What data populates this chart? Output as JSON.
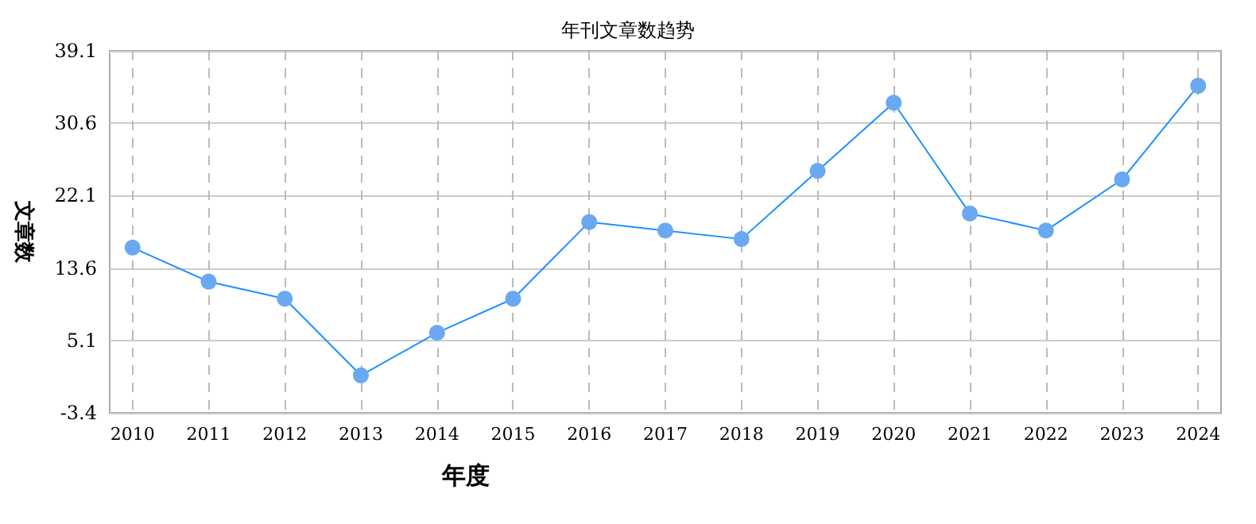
{
  "chart_data": {
    "type": "line",
    "title": "年刊文章数趋势",
    "xlabel": "年度",
    "ylabel": "文章数",
    "x": [
      2010,
      2011,
      2012,
      2013,
      2014,
      2015,
      2016,
      2017,
      2018,
      2019,
      2020,
      2021,
      2022,
      2023,
      2024
    ],
    "series": [
      {
        "color": "#1e90ff",
        "values": [
          16,
          12,
          10,
          1,
          6,
          10,
          19,
          18,
          17,
          25,
          33,
          20,
          18,
          24,
          35
        ]
      }
    ],
    "xlim": [
      2009.7,
      2024.3
    ],
    "xticks": [
      2010,
      2011,
      2012,
      2013,
      2014,
      2015,
      2016,
      2017,
      2018,
      2019,
      2020,
      2021,
      2022,
      2023,
      2024
    ],
    "ylim": [
      -3.4,
      39.1
    ],
    "yticks": [
      -3.4,
      5.1,
      13.6,
      22.1,
      30.6,
      39.1
    ],
    "grid": true,
    "marker": "circle",
    "line_style": "solid"
  }
}
